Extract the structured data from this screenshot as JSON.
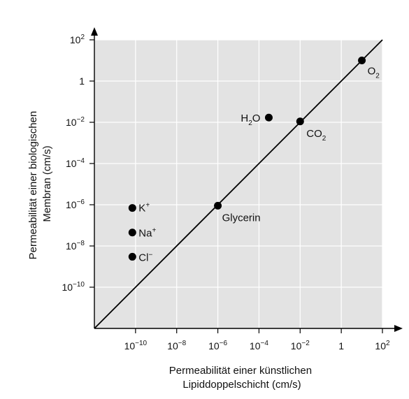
{
  "chart_data": {
    "type": "scatter",
    "x_scale": "log",
    "y_scale": "log",
    "xlabel": [
      "Permeabilität einer künstlichen",
      "Lipiddoppelschicht (cm/s)"
    ],
    "ylabel": [
      "Permeabilität einer biologischen",
      "Membran (cm/s)"
    ],
    "xlim": [
      1e-12,
      100.0
    ],
    "ylim": [
      1e-12,
      100.0
    ],
    "grid": true,
    "x_ticks": [
      {
        "value": 1e-10,
        "base": "10",
        "exp": "−10"
      },
      {
        "value": 1e-08,
        "base": "10",
        "exp": "−8"
      },
      {
        "value": 1e-06,
        "base": "10",
        "exp": "−6"
      },
      {
        "value": 0.0001,
        "base": "10",
        "exp": "−4"
      },
      {
        "value": 0.01,
        "base": "10",
        "exp": "−2"
      },
      {
        "value": 1,
        "base": "1",
        "exp": ""
      },
      {
        "value": 100.0,
        "base": "10",
        "exp": "2"
      }
    ],
    "y_ticks": [
      {
        "value": 1e-10,
        "base": "10",
        "exp": "−10"
      },
      {
        "value": 1e-08,
        "base": "10",
        "exp": "−8"
      },
      {
        "value": 1e-06,
        "base": "10",
        "exp": "−6"
      },
      {
        "value": 0.0001,
        "base": "10",
        "exp": "−4"
      },
      {
        "value": 0.01,
        "base": "10",
        "exp": "−2"
      },
      {
        "value": 1,
        "base": "1",
        "exp": ""
      },
      {
        "value": 100.0,
        "base": "10",
        "exp": "2"
      }
    ],
    "points": [
      {
        "label": "O",
        "sub": "2",
        "sup": "",
        "x": 10,
        "y": 10
      },
      {
        "label": "H",
        "sub": "2",
        "tail": "O",
        "sup": "",
        "x": 0.0003,
        "y": 0.017
      },
      {
        "label": "CO",
        "sub": "2",
        "sup": "",
        "x": 0.01,
        "y": 0.011
      },
      {
        "label": "Glycerin",
        "sub": "",
        "sup": "",
        "x": 1e-06,
        "y": 9e-07
      },
      {
        "label": "K",
        "sub": "",
        "sup": "+",
        "x": 7e-11,
        "y": 7e-07
      },
      {
        "label": "Na",
        "sub": "",
        "sup": "+",
        "x": 7e-11,
        "y": 4.5e-08
      },
      {
        "label": "Cl",
        "sub": "",
        "sup": "−",
        "x": 7e-11,
        "y": 3e-09
      }
    ],
    "reference_line": {
      "type": "identity",
      "from": [
        1e-12,
        1e-12
      ],
      "to": [
        100.0,
        100.0
      ]
    },
    "colors": {
      "background": "#e3e3e3",
      "grid": "#ffffff",
      "ink": "#000000"
    }
  }
}
